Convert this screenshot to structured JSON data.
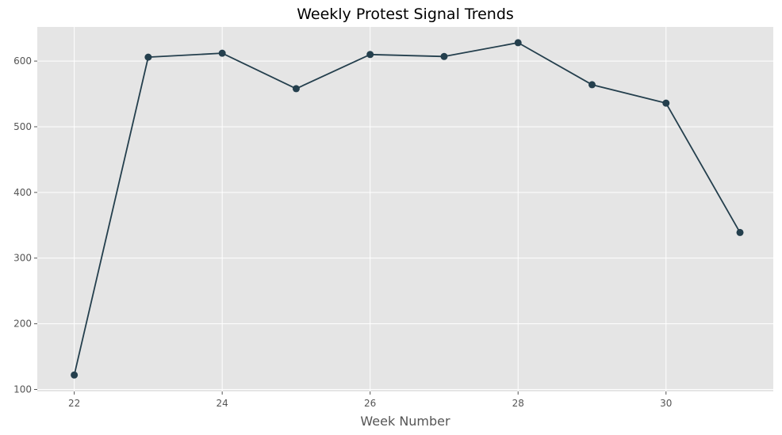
{
  "chart_data": {
    "type": "line",
    "title": "Weekly Protest Signal Trends",
    "xlabel": "Week Number",
    "ylabel": "",
    "x": [
      22,
      23,
      24,
      25,
      26,
      27,
      28,
      29,
      30,
      31
    ],
    "series": [
      {
        "values": [
          122,
          606,
          612,
          558,
          610,
          607,
          628,
          564,
          536,
          339
        ]
      }
    ],
    "x_ticks": [
      22,
      24,
      26,
      28,
      30
    ],
    "y_ticks": [
      100,
      200,
      300,
      400,
      500,
      600
    ],
    "xlim": [
      21.5,
      31.45
    ],
    "ylim": [
      97,
      652
    ],
    "grid": true,
    "style": {
      "plot_background": "#e5e5e5",
      "grid_color": "#ffffff",
      "line_color": "#243f4d",
      "marker_color": "#243f4d"
    }
  }
}
